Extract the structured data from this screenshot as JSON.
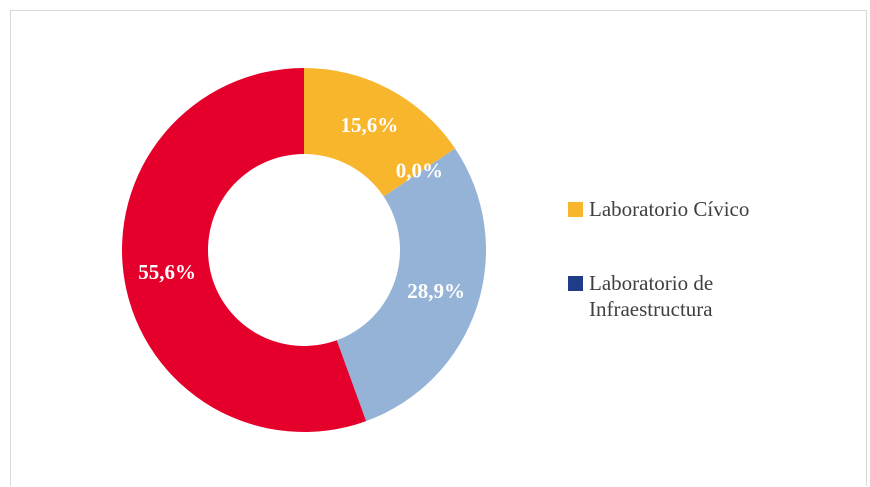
{
  "chart_data": {
    "type": "donut",
    "categories": [
      "Laboratorio Cívico",
      "Laboratorio de Infraestructura",
      null,
      null
    ],
    "values": [
      15.6,
      0.0,
      28.9,
      55.6
    ],
    "value_labels": [
      "15,6%",
      "0,0%",
      "28,9%",
      "55,6%"
    ],
    "colors": [
      "#f8b62d",
      "#1f3c88",
      "#95b3d7",
      "#e4002b"
    ],
    "legend": "right"
  }
}
